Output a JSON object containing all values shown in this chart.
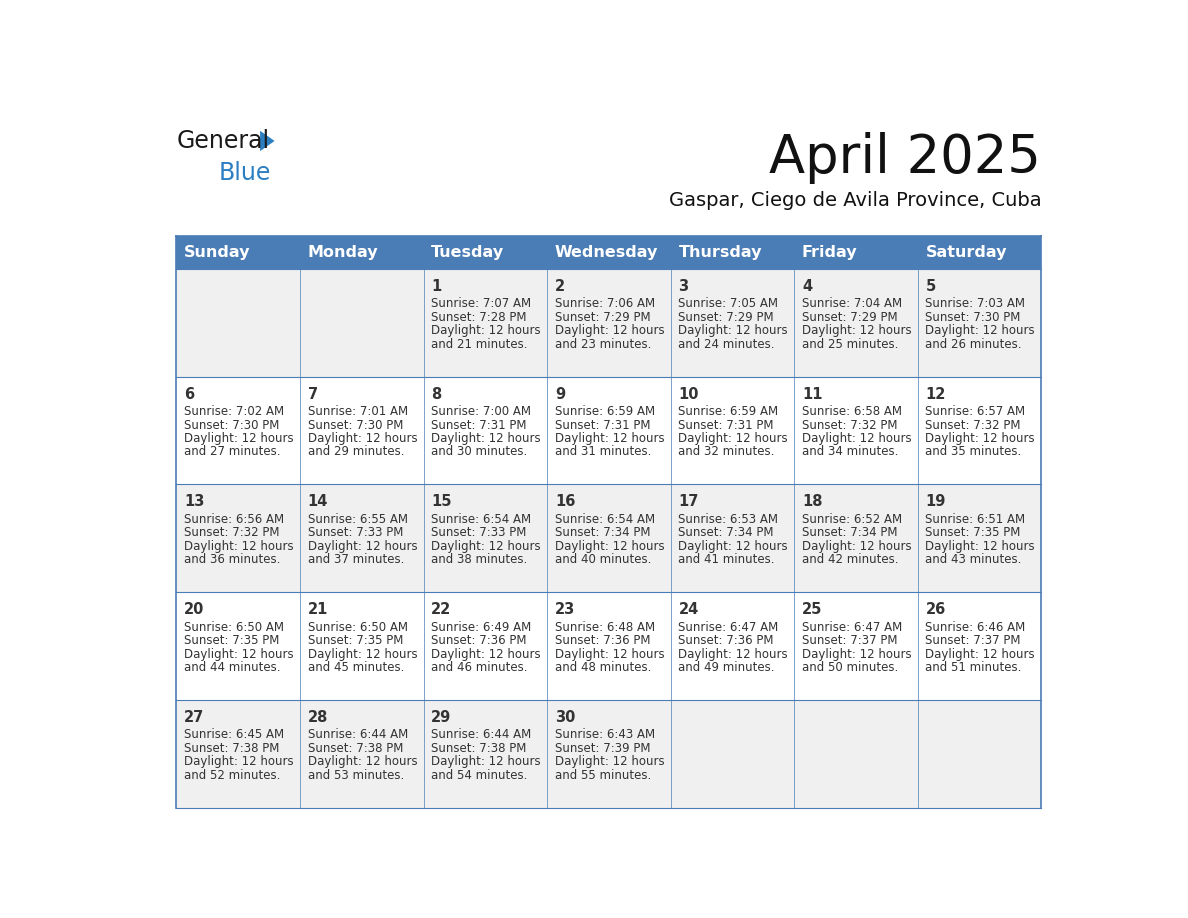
{
  "title": "April 2025",
  "subtitle": "Gaspar, Ciego de Avila Province, Cuba",
  "days_of_week": [
    "Sunday",
    "Monday",
    "Tuesday",
    "Wednesday",
    "Thursday",
    "Friday",
    "Saturday"
  ],
  "header_bg": "#4A7CB5",
  "header_text": "#FFFFFF",
  "row_bg_odd": "#F0F0F0",
  "row_bg_even": "#FFFFFF",
  "text_color": "#333333",
  "border_color": "#4A7CB5",
  "calendar_data": [
    [
      null,
      null,
      {
        "day": 1,
        "sunrise": "7:07 AM",
        "sunset": "7:28 PM",
        "daylight": "12 hours and 21 minutes."
      },
      {
        "day": 2,
        "sunrise": "7:06 AM",
        "sunset": "7:29 PM",
        "daylight": "12 hours and 23 minutes."
      },
      {
        "day": 3,
        "sunrise": "7:05 AM",
        "sunset": "7:29 PM",
        "daylight": "12 hours and 24 minutes."
      },
      {
        "day": 4,
        "sunrise": "7:04 AM",
        "sunset": "7:29 PM",
        "daylight": "12 hours and 25 minutes."
      },
      {
        "day": 5,
        "sunrise": "7:03 AM",
        "sunset": "7:30 PM",
        "daylight": "12 hours and 26 minutes."
      }
    ],
    [
      {
        "day": 6,
        "sunrise": "7:02 AM",
        "sunset": "7:30 PM",
        "daylight": "12 hours and 27 minutes."
      },
      {
        "day": 7,
        "sunrise": "7:01 AM",
        "sunset": "7:30 PM",
        "daylight": "12 hours and 29 minutes."
      },
      {
        "day": 8,
        "sunrise": "7:00 AM",
        "sunset": "7:31 PM",
        "daylight": "12 hours and 30 minutes."
      },
      {
        "day": 9,
        "sunrise": "6:59 AM",
        "sunset": "7:31 PM",
        "daylight": "12 hours and 31 minutes."
      },
      {
        "day": 10,
        "sunrise": "6:59 AM",
        "sunset": "7:31 PM",
        "daylight": "12 hours and 32 minutes."
      },
      {
        "day": 11,
        "sunrise": "6:58 AM",
        "sunset": "7:32 PM",
        "daylight": "12 hours and 34 minutes."
      },
      {
        "day": 12,
        "sunrise": "6:57 AM",
        "sunset": "7:32 PM",
        "daylight": "12 hours and 35 minutes."
      }
    ],
    [
      {
        "day": 13,
        "sunrise": "6:56 AM",
        "sunset": "7:32 PM",
        "daylight": "12 hours and 36 minutes."
      },
      {
        "day": 14,
        "sunrise": "6:55 AM",
        "sunset": "7:33 PM",
        "daylight": "12 hours and 37 minutes."
      },
      {
        "day": 15,
        "sunrise": "6:54 AM",
        "sunset": "7:33 PM",
        "daylight": "12 hours and 38 minutes."
      },
      {
        "day": 16,
        "sunrise": "6:54 AM",
        "sunset": "7:34 PM",
        "daylight": "12 hours and 40 minutes."
      },
      {
        "day": 17,
        "sunrise": "6:53 AM",
        "sunset": "7:34 PM",
        "daylight": "12 hours and 41 minutes."
      },
      {
        "day": 18,
        "sunrise": "6:52 AM",
        "sunset": "7:34 PM",
        "daylight": "12 hours and 42 minutes."
      },
      {
        "day": 19,
        "sunrise": "6:51 AM",
        "sunset": "7:35 PM",
        "daylight": "12 hours and 43 minutes."
      }
    ],
    [
      {
        "day": 20,
        "sunrise": "6:50 AM",
        "sunset": "7:35 PM",
        "daylight": "12 hours and 44 minutes."
      },
      {
        "day": 21,
        "sunrise": "6:50 AM",
        "sunset": "7:35 PM",
        "daylight": "12 hours and 45 minutes."
      },
      {
        "day": 22,
        "sunrise": "6:49 AM",
        "sunset": "7:36 PM",
        "daylight": "12 hours and 46 minutes."
      },
      {
        "day": 23,
        "sunrise": "6:48 AM",
        "sunset": "7:36 PM",
        "daylight": "12 hours and 48 minutes."
      },
      {
        "day": 24,
        "sunrise": "6:47 AM",
        "sunset": "7:36 PM",
        "daylight": "12 hours and 49 minutes."
      },
      {
        "day": 25,
        "sunrise": "6:47 AM",
        "sunset": "7:37 PM",
        "daylight": "12 hours and 50 minutes."
      },
      {
        "day": 26,
        "sunrise": "6:46 AM",
        "sunset": "7:37 PM",
        "daylight": "12 hours and 51 minutes."
      }
    ],
    [
      {
        "day": 27,
        "sunrise": "6:45 AM",
        "sunset": "7:38 PM",
        "daylight": "12 hours and 52 minutes."
      },
      {
        "day": 28,
        "sunrise": "6:44 AM",
        "sunset": "7:38 PM",
        "daylight": "12 hours and 53 minutes."
      },
      {
        "day": 29,
        "sunrise": "6:44 AM",
        "sunset": "7:38 PM",
        "daylight": "12 hours and 54 minutes."
      },
      {
        "day": 30,
        "sunrise": "6:43 AM",
        "sunset": "7:39 PM",
        "daylight": "12 hours and 55 minutes."
      },
      null,
      null,
      null
    ]
  ],
  "logo_general_color": "#1a1a1a",
  "logo_blue_color": "#2B7EC1",
  "logo_triangle_color": "#2B7EC1"
}
